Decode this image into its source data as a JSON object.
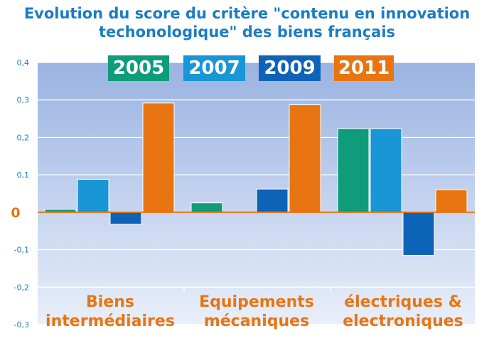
{
  "chart_data": {
    "type": "bar",
    "title": "Evolution du score du critère \"contenu en innovation techonologique\" des biens français",
    "title_lines": [
      "Evolution du score du critère \"contenu en innovation",
      "techonologique\" des biens français"
    ],
    "categories": [
      "Biens intermédiaires",
      "Equipements mécaniques",
      "électriques & electroniques"
    ],
    "category_lines": [
      [
        "Biens",
        "intermédiaires"
      ],
      [
        "Equipements",
        "mécaniques"
      ],
      [
        "électriques &",
        "electroniques"
      ]
    ],
    "series": [
      {
        "name": "2005",
        "color": "#0E9C7A",
        "values": [
          0.008,
          0.025,
          0.223
        ]
      },
      {
        "name": "2007",
        "color": "#1896D6",
        "values": [
          0.088,
          0.0,
          0.223
        ]
      },
      {
        "name": "2009",
        "color": "#0D63B8",
        "values": [
          -0.032,
          0.062,
          -0.115
        ]
      },
      {
        "name": "2011",
        "color": "#E87511",
        "values": [
          0.292,
          0.287,
          0.06
        ]
      }
    ],
    "yticks": [
      "0,4",
      "0,3",
      "0,2",
      "0,1",
      "0",
      "-0,1",
      "-0,2",
      "-0,3"
    ],
    "ytick_values": [
      0.4,
      0.3,
      0.2,
      0.1,
      0,
      -0.1,
      -0.2,
      -0.3
    ],
    "ylim": [
      -0.3,
      0.4
    ],
    "grid": true,
    "legend_placement": "top",
    "xlabel": "",
    "ylabel": "",
    "colors": {
      "title": "#1A7CC4",
      "axis_text": "#1A7CC4",
      "zero_line": "#E87511",
      "category_text": "#E87511",
      "bg_top": "#9AB3E2",
      "bg_bottom": "#E9EFFA",
      "grid": "#FFFFFF"
    }
  }
}
